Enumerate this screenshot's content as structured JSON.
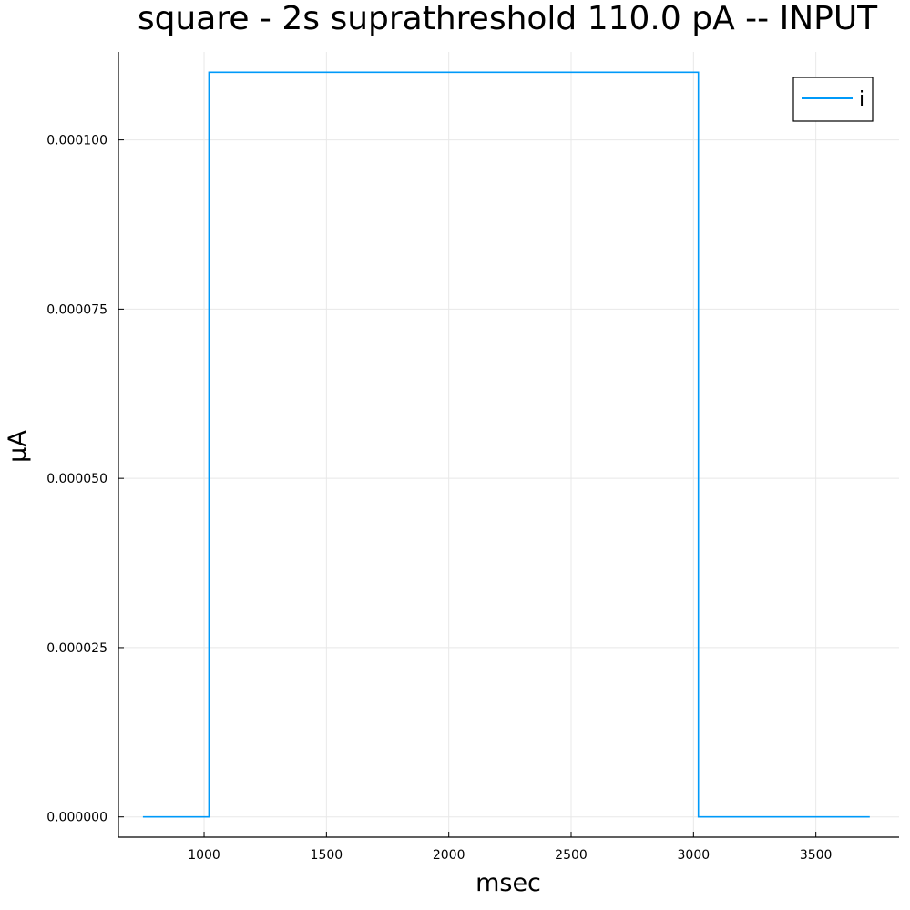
{
  "chart_data": {
    "type": "line",
    "title": "square - 2s suprathreshold 110.0 pA -- INPUT",
    "xlabel": "msec",
    "ylabel": "µA",
    "xlim": [
      650,
      3840
    ],
    "ylim": [
      -3e-06,
      0.000113
    ],
    "xticks": [
      1000,
      1500,
      2000,
      2500,
      3000,
      3500
    ],
    "xtick_labels": [
      "1000",
      "1500",
      "2000",
      "2500",
      "3000",
      "3500"
    ],
    "yticks": [
      0,
      2.5e-05,
      5e-05,
      7.5e-05,
      0.0001
    ],
    "ytick_labels": [
      "0.000000",
      "0.000025",
      "0.000050",
      "0.000075",
      "0.000100"
    ],
    "grid": true,
    "legend_position": "top-right",
    "series": [
      {
        "name": "i",
        "color": "#009af9",
        "x": [
          750,
          1020,
          1020,
          3020,
          3020,
          3720
        ],
        "y": [
          0,
          0,
          0.00011,
          0.00011,
          0,
          0
        ]
      }
    ]
  }
}
